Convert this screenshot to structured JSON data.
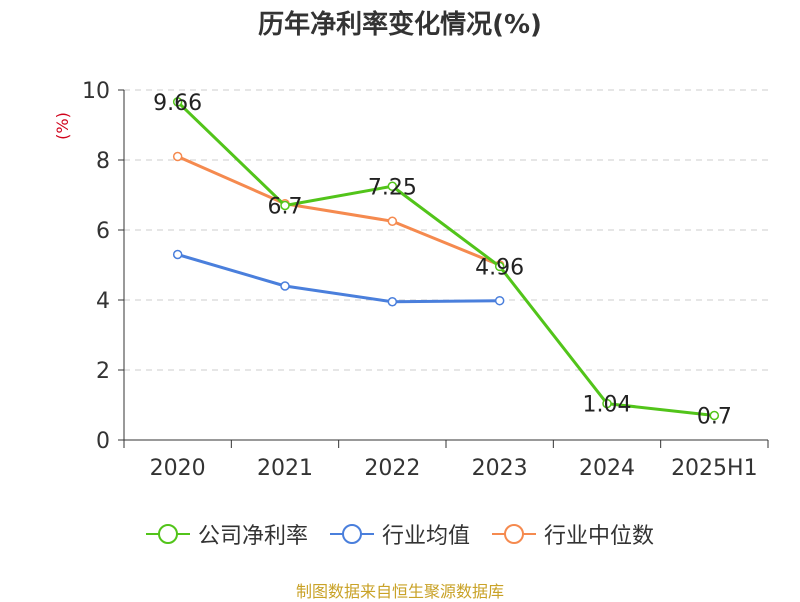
{
  "colors": {
    "company": "#52c41a",
    "industry_avg": "#4a7fdc",
    "industry_median": "#f58a4f",
    "grid": "#cccccc",
    "axis": "#333333",
    "footer": "#c9a227",
    "yunit": "#d0021b"
  },
  "footer": "制图数据来自恒生聚源数据库",
  "chart_data": {
    "type": "line",
    "title": "历年净利率变化情况(%)",
    "ylabel": "(%)",
    "xlabel": "",
    "categories": [
      "2020",
      "2021",
      "2022",
      "2023",
      "2024",
      "2025H1"
    ],
    "ylim": [
      0,
      10
    ],
    "yticks": [
      0,
      2,
      4,
      6,
      8,
      10
    ],
    "grid": true,
    "legend_position": "bottom",
    "series": [
      {
        "name": "公司净利率",
        "values": [
          9.66,
          6.7,
          7.25,
          4.96,
          1.04,
          0.7
        ],
        "labels": [
          "9.66",
          "6.7",
          "7.25",
          "4.96",
          "1.04",
          "0.7"
        ],
        "color": "#52c41a"
      },
      {
        "name": "行业均值",
        "values": [
          5.3,
          4.4,
          3.95,
          3.98,
          null,
          null
        ],
        "labels": [],
        "color": "#4a7fdc"
      },
      {
        "name": "行业中位数",
        "values": [
          8.1,
          6.75,
          6.25,
          5.0,
          null,
          null
        ],
        "labels": [],
        "color": "#f58a4f"
      }
    ]
  }
}
